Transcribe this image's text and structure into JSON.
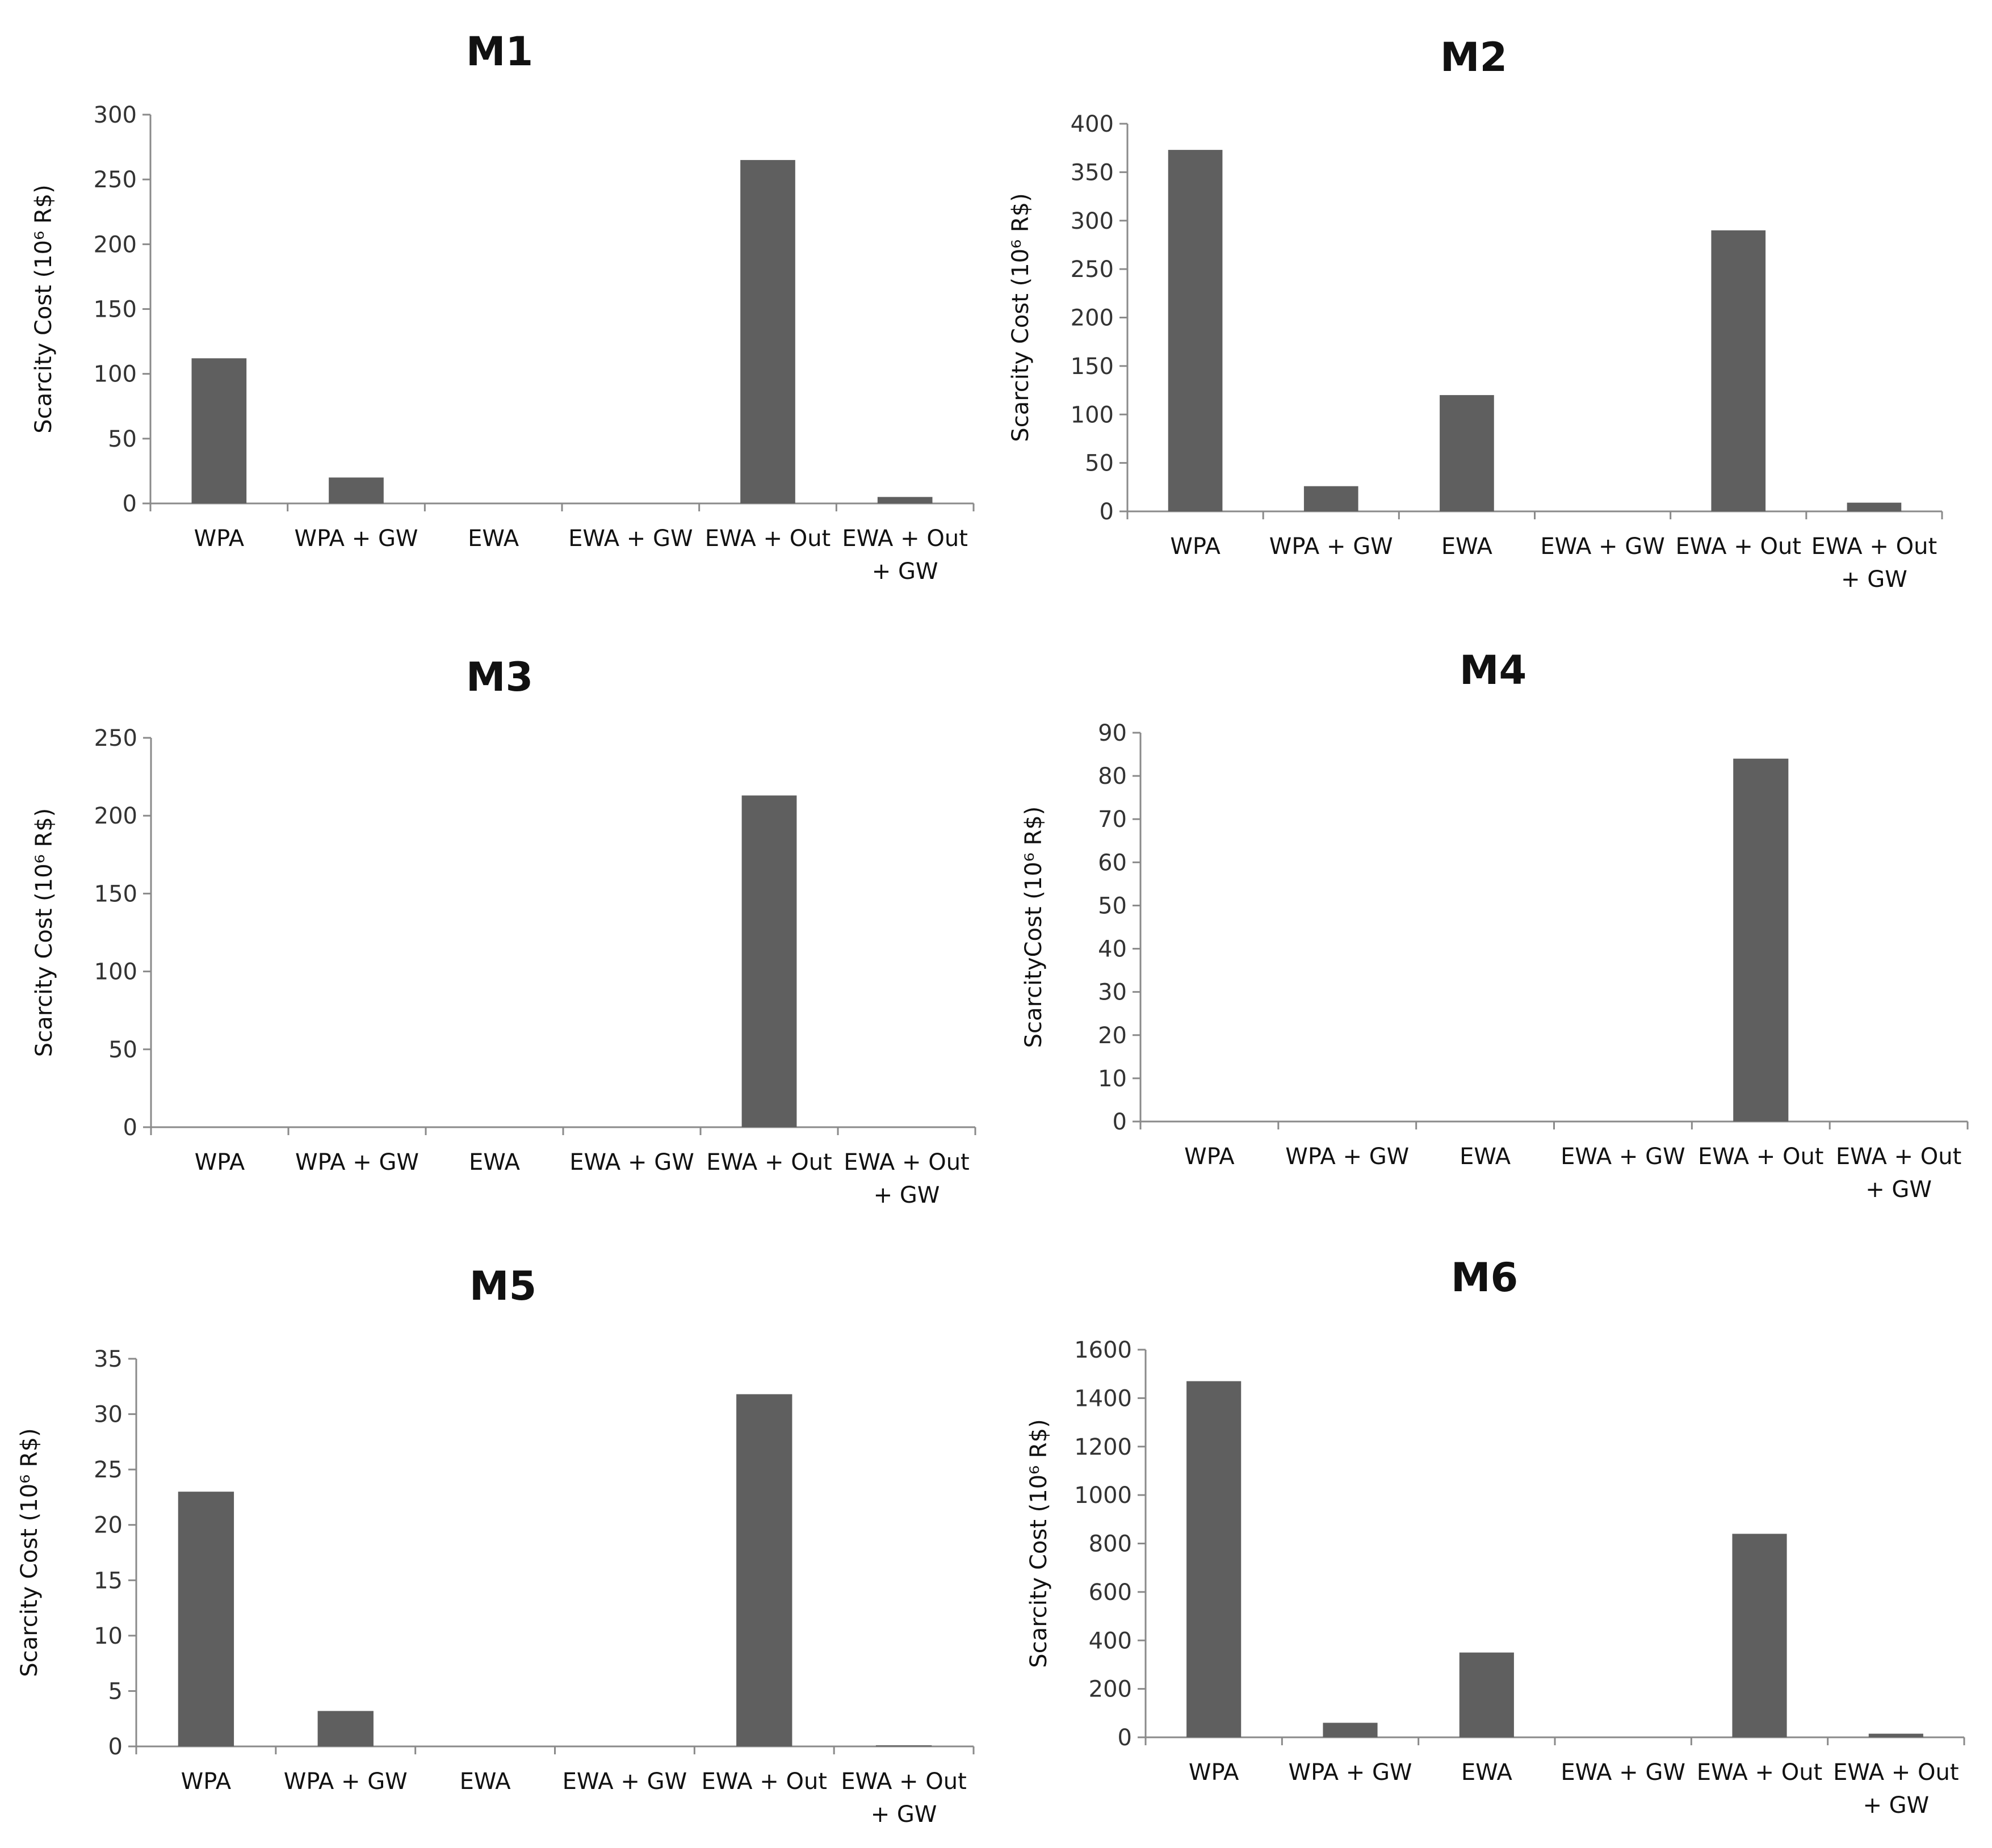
{
  "chart_data": [
    {
      "type": "bar",
      "title": "M1",
      "ylabel": "Scarcity Cost (10⁶ R$)",
      "categories": [
        [
          "WPA"
        ],
        [
          "WPA + GW"
        ],
        [
          "EWA"
        ],
        [
          "EWA + GW"
        ],
        [
          "EWA + Out"
        ],
        [
          "EWA + Out",
          "+ GW"
        ]
      ],
      "values": [
        112,
        20,
        0,
        0,
        265,
        5
      ],
      "ylim": [
        0,
        300
      ],
      "yticks": [
        0,
        50,
        100,
        150,
        200,
        250,
        300
      ]
    },
    {
      "type": "bar",
      "title": "M2",
      "ylabel": "Scarcity Cost (10⁶ R$)",
      "categories": [
        [
          "WPA"
        ],
        [
          "WPA + GW"
        ],
        [
          "EWA"
        ],
        [
          "EWA + GW"
        ],
        [
          "EWA + Out"
        ],
        [
          "EWA + Out",
          "+ GW"
        ]
      ],
      "values": [
        373,
        26,
        120,
        0,
        290,
        9
      ],
      "ylim": [
        0,
        400
      ],
      "yticks": [
        0,
        50,
        100,
        150,
        200,
        250,
        300,
        350,
        400
      ]
    },
    {
      "type": "bar",
      "title": "M3",
      "ylabel": "Scarcity Cost (10⁶ R$)",
      "categories": [
        [
          "WPA"
        ],
        [
          "WPA + GW"
        ],
        [
          "EWA"
        ],
        [
          "EWA + GW"
        ],
        [
          "EWA + Out"
        ],
        [
          "EWA + Out",
          "+ GW"
        ]
      ],
      "values": [
        0,
        0,
        0,
        0,
        213,
        0
      ],
      "ylim": [
        0,
        250
      ],
      "yticks": [
        0,
        50,
        100,
        150,
        200,
        250
      ]
    },
    {
      "type": "bar",
      "title": "M4",
      "ylabel": "ScarcityCost (10⁶ R$)",
      "categories": [
        [
          "WPA"
        ],
        [
          "WPA + GW"
        ],
        [
          "EWA"
        ],
        [
          "EWA + GW"
        ],
        [
          "EWA + Out"
        ],
        [
          "EWA + Out",
          "+ GW"
        ]
      ],
      "values": [
        0,
        0,
        0,
        0,
        84,
        0
      ],
      "ylim": [
        0,
        90
      ],
      "yticks": [
        0,
        10,
        20,
        30,
        40,
        50,
        60,
        70,
        80,
        90
      ]
    },
    {
      "type": "bar",
      "title": "M5",
      "ylabel": "Scarcity Cost (10⁶ R$)",
      "categories": [
        [
          "WPA"
        ],
        [
          "WPA + GW"
        ],
        [
          "EWA"
        ],
        [
          "EWA + GW"
        ],
        [
          "EWA + Out"
        ],
        [
          "EWA + Out",
          "+ GW"
        ]
      ],
      "values": [
        23,
        3.2,
        0,
        0,
        31.8,
        0.1
      ],
      "ylim": [
        0,
        35
      ],
      "yticks": [
        0,
        5,
        10,
        15,
        20,
        25,
        30,
        35
      ]
    },
    {
      "type": "bar",
      "title": "M6",
      "ylabel": "Scarcity Cost (10⁶ R$)",
      "categories": [
        [
          "WPA"
        ],
        [
          "WPA + GW"
        ],
        [
          "EWA"
        ],
        [
          "EWA + GW"
        ],
        [
          "EWA + Out"
        ],
        [
          "EWA + Out",
          "+ GW"
        ]
      ],
      "values": [
        1470,
        60,
        350,
        0,
        840,
        15
      ],
      "ylim": [
        0,
        1600
      ],
      "yticks": [
        0,
        200,
        400,
        600,
        800,
        1000,
        1200,
        1400,
        1600
      ]
    }
  ]
}
